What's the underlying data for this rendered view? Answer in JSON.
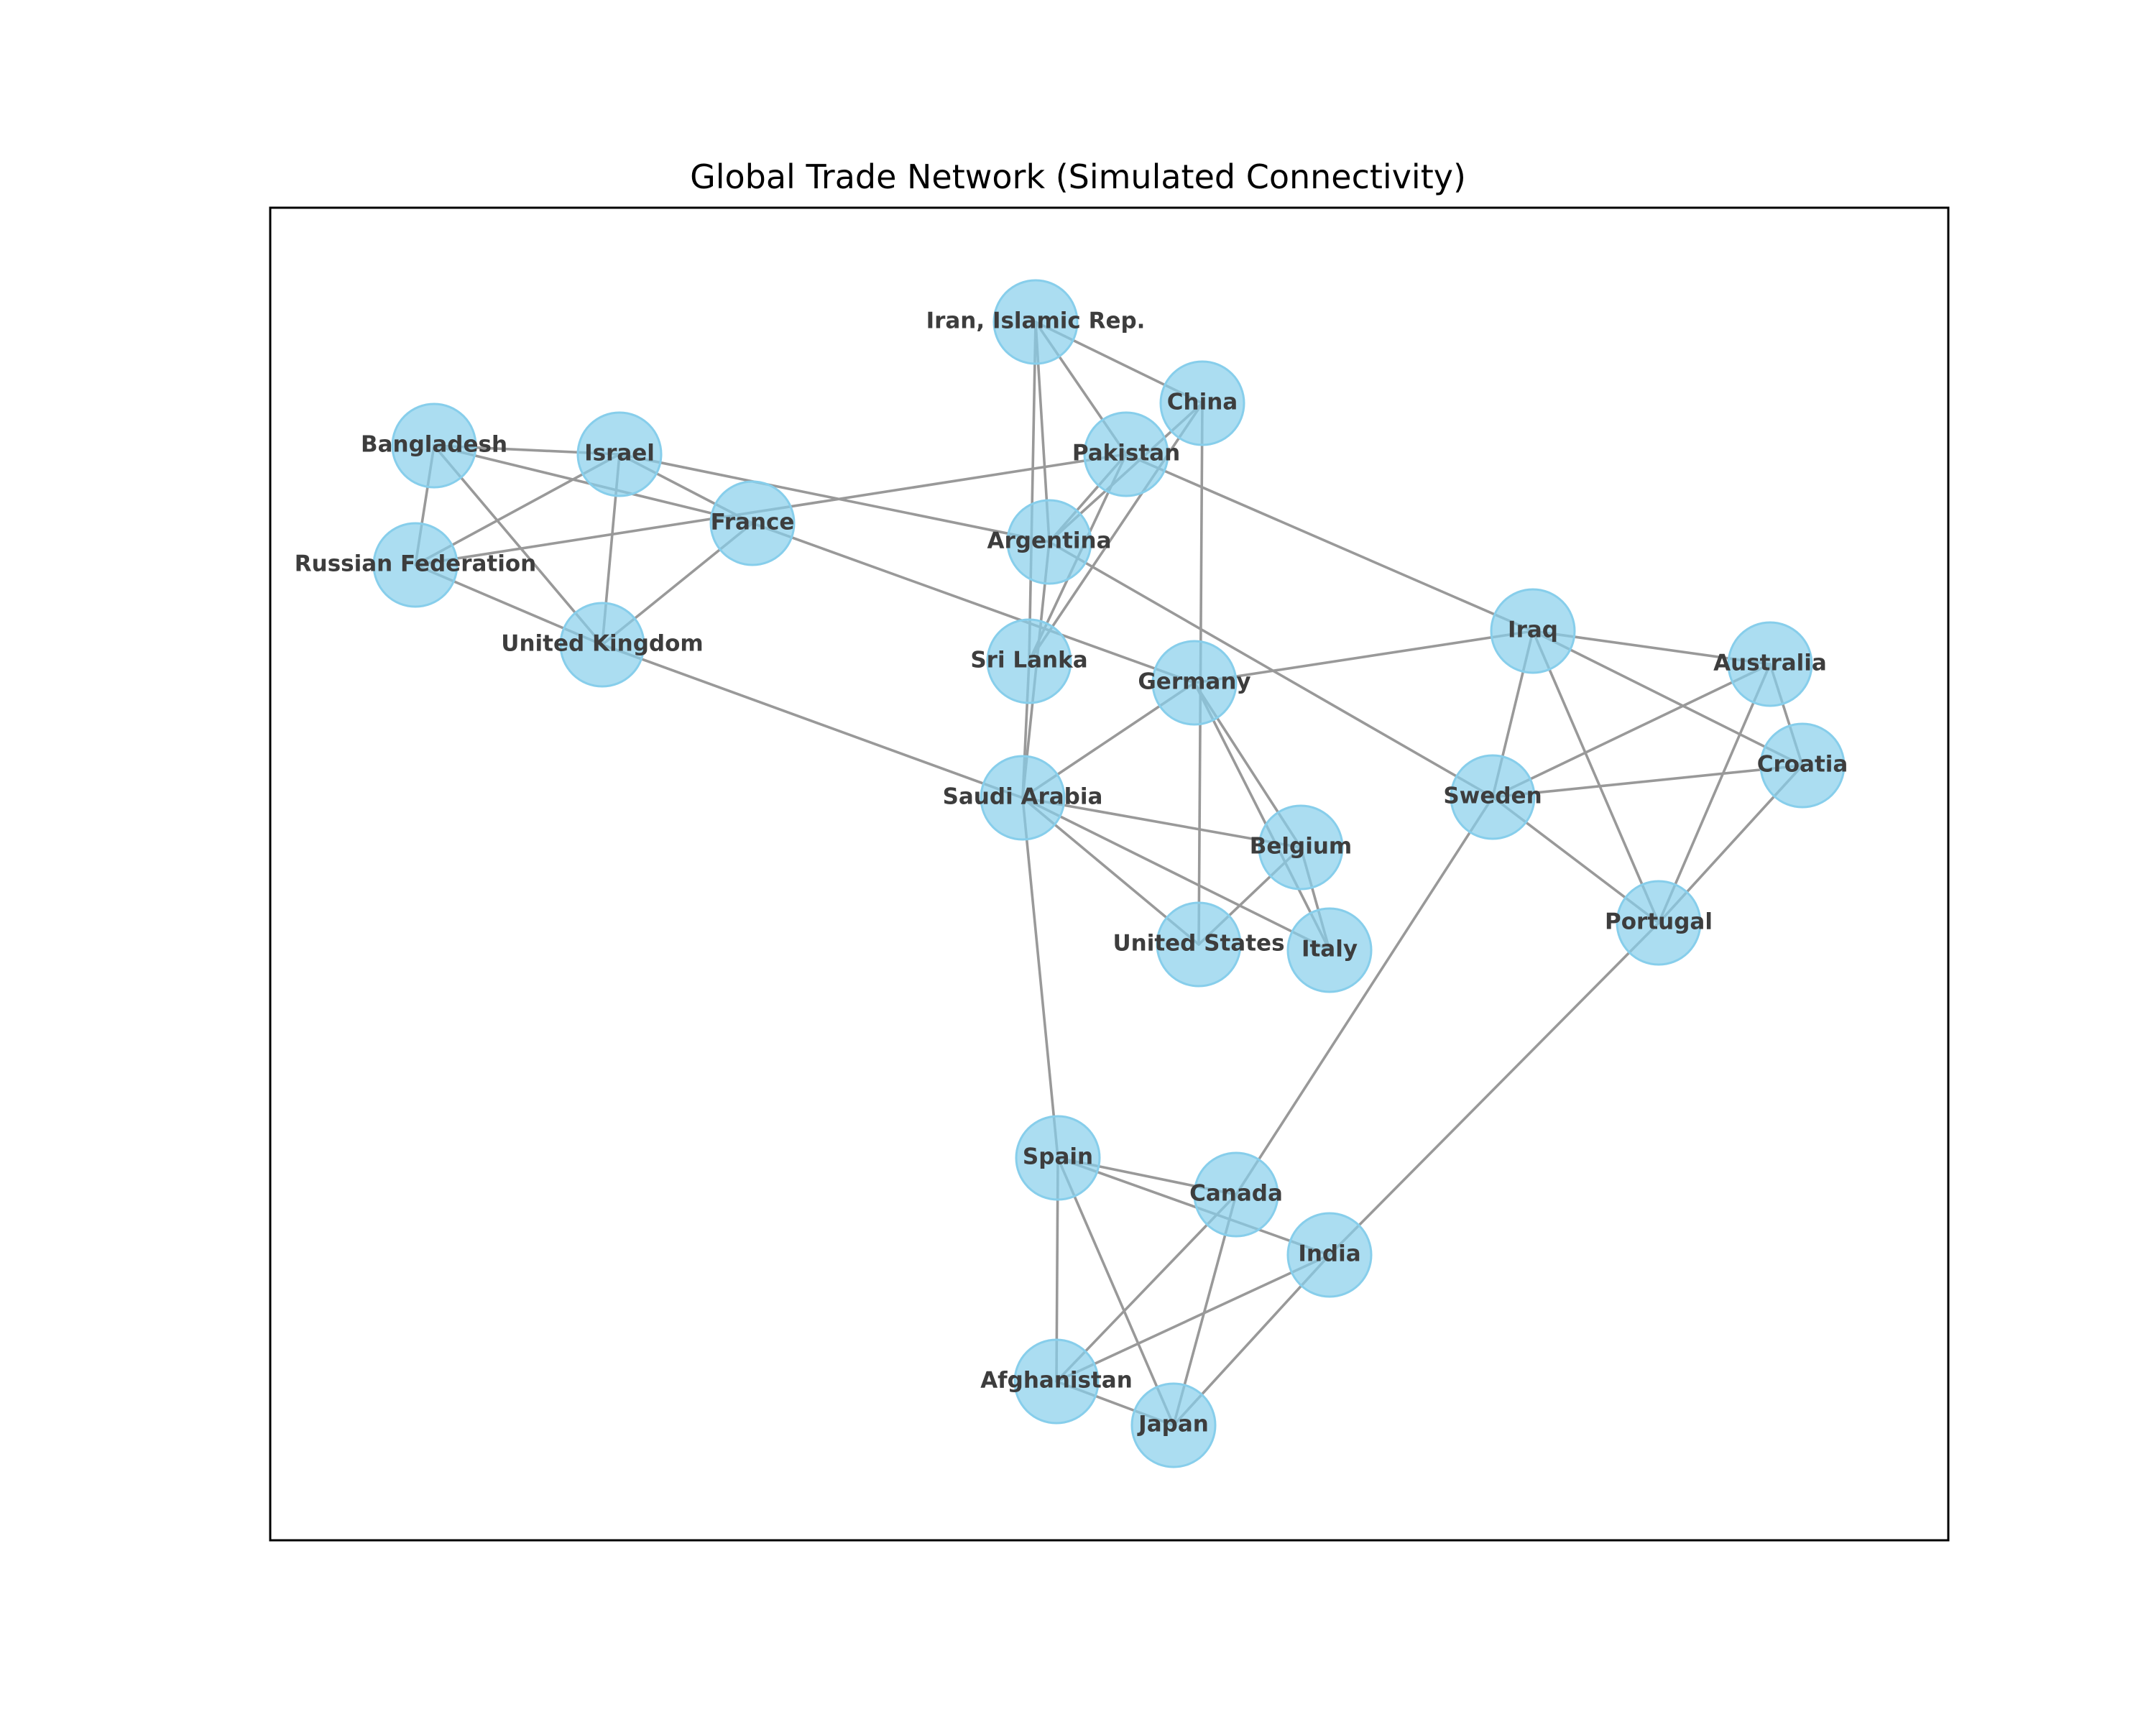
{
  "title": "Global Trade Network (Simulated Connectivity)",
  "colors": {
    "node_fill": "#87ceeb",
    "node_stroke": "#87ceeb",
    "edge": "#999999",
    "label": "#3d3d3d",
    "frame": "#000000"
  },
  "nodes": [
    {
      "id": "Iran, Islamic Rep."
    },
    {
      "id": "China"
    },
    {
      "id": "Bangladesh"
    },
    {
      "id": "Israel"
    },
    {
      "id": "Pakistan"
    },
    {
      "id": "France"
    },
    {
      "id": "Argentina"
    },
    {
      "id": "Russian Federation"
    },
    {
      "id": "Iraq"
    },
    {
      "id": "United Kingdom"
    },
    {
      "id": "Sri Lanka"
    },
    {
      "id": "Germany"
    },
    {
      "id": "Australia"
    },
    {
      "id": "Croatia"
    },
    {
      "id": "Sweden"
    },
    {
      "id": "Saudi Arabia"
    },
    {
      "id": "Belgium"
    },
    {
      "id": "Portugal"
    },
    {
      "id": "United States"
    },
    {
      "id": "Italy"
    },
    {
      "id": "Spain"
    },
    {
      "id": "Canada"
    },
    {
      "id": "India"
    },
    {
      "id": "Afghanistan"
    },
    {
      "id": "Japan"
    }
  ],
  "edges": [
    [
      "Iran, Islamic Rep.",
      "China"
    ],
    [
      "Iran, Islamic Rep.",
      "Pakistan"
    ],
    [
      "Iran, Islamic Rep.",
      "Argentina"
    ],
    [
      "Iran, Islamic Rep.",
      "Sri Lanka"
    ],
    [
      "China",
      "Argentina"
    ],
    [
      "China",
      "Sri Lanka"
    ],
    [
      "China",
      "United States"
    ],
    [
      "Pakistan",
      "Argentina"
    ],
    [
      "Pakistan",
      "Sri Lanka"
    ],
    [
      "Pakistan",
      "Russian Federation"
    ],
    [
      "Pakistan",
      "Iraq"
    ],
    [
      "Argentina",
      "Saudi Arabia"
    ],
    [
      "Argentina",
      "Sweden"
    ],
    [
      "Sri Lanka",
      "Saudi Arabia"
    ],
    [
      "Bangladesh",
      "Israel"
    ],
    [
      "Bangladesh",
      "Russian Federation"
    ],
    [
      "Bangladesh",
      "United Kingdom"
    ],
    [
      "Bangladesh",
      "France"
    ],
    [
      "Israel",
      "Russian Federation"
    ],
    [
      "Israel",
      "United Kingdom"
    ],
    [
      "Israel",
      "France"
    ],
    [
      "Israel",
      "Argentina"
    ],
    [
      "Russian Federation",
      "United Kingdom"
    ],
    [
      "France",
      "United Kingdom"
    ],
    [
      "France",
      "Germany"
    ],
    [
      "United Kingdom",
      "Saudi Arabia"
    ],
    [
      "Iraq",
      "Germany"
    ],
    [
      "Iraq",
      "Australia"
    ],
    [
      "Iraq",
      "Croatia"
    ],
    [
      "Iraq",
      "Sweden"
    ],
    [
      "Iraq",
      "Portugal"
    ],
    [
      "Australia",
      "Croatia"
    ],
    [
      "Australia",
      "Sweden"
    ],
    [
      "Australia",
      "Portugal"
    ],
    [
      "Croatia",
      "Sweden"
    ],
    [
      "Croatia",
      "Portugal"
    ],
    [
      "Sweden",
      "Portugal"
    ],
    [
      "Sweden",
      "Canada"
    ],
    [
      "Germany",
      "Saudi Arabia"
    ],
    [
      "Germany",
      "Italy"
    ],
    [
      "Germany",
      "Belgium"
    ],
    [
      "Saudi Arabia",
      "Belgium"
    ],
    [
      "Saudi Arabia",
      "Italy"
    ],
    [
      "Saudi Arabia",
      "United States"
    ],
    [
      "Saudi Arabia",
      "Spain"
    ],
    [
      "Belgium",
      "United States"
    ],
    [
      "Belgium",
      "Italy"
    ],
    [
      "Portugal",
      "India"
    ],
    [
      "Spain",
      "Canada"
    ],
    [
      "Spain",
      "India"
    ],
    [
      "Spain",
      "Afghanistan"
    ],
    [
      "Spain",
      "Japan"
    ],
    [
      "Canada",
      "Afghanistan"
    ],
    [
      "Canada",
      "Japan"
    ],
    [
      "India",
      "Afghanistan"
    ],
    [
      "India",
      "Japan"
    ],
    [
      "Afghanistan",
      "Japan"
    ]
  ]
}
